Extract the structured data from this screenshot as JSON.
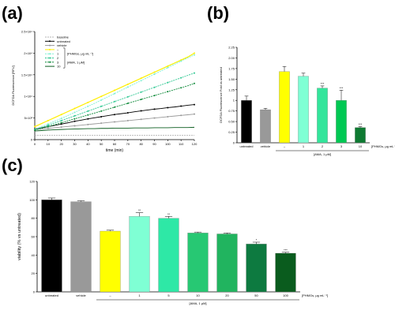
{
  "panels": {
    "a": "(a)",
    "b": "(b)",
    "c": "(c)"
  },
  "chart_data": [
    {
      "panel": "(a)",
      "type": "line",
      "xlabel": "time (min)",
      "ylabel": "DCFDA Fluorescence [RFU]",
      "xlim": [
        0,
        120
      ],
      "ylim": [
        0,
        25000
      ],
      "x": [
        0,
        5,
        10,
        15,
        20,
        25,
        30,
        35,
        40,
        45,
        50,
        55,
        60,
        65,
        70,
        75,
        80,
        85,
        90,
        95,
        100,
        105,
        110,
        115,
        120
      ],
      "x_ticks": [
        0,
        10,
        20,
        30,
        40,
        50,
        60,
        70,
        80,
        90,
        100,
        110,
        120
      ],
      "y_ticks": [
        0,
        5000,
        10000,
        15000,
        20000,
        25000
      ],
      "y_tick_labels": [
        "0",
        "5×10³",
        "1×10⁴",
        "1.5×10⁴",
        "2×10⁴",
        "2.5×10⁴"
      ],
      "legend_note": "[PHMGs, μg mL⁻¹]",
      "legend_note2": "[AMA, 1 μM]",
      "series": [
        {
          "name": "baseline",
          "color": "#b4b4b4",
          "dash": "2,1",
          "marker": "none",
          "values": [
            1000,
            1000,
            1000,
            1000,
            1000,
            1000,
            1000,
            1000,
            1000,
            1000,
            1000,
            1000,
            1000,
            1000,
            1000,
            1000,
            1000,
            1000,
            1000,
            1000,
            1000,
            1000,
            1000,
            1000,
            1000
          ]
        },
        {
          "name": "untreated",
          "color": "#000000",
          "dash": "",
          "marker": "circle",
          "values": [
            2500,
            2750,
            3000,
            3300,
            3600,
            3900,
            4250,
            4500,
            4800,
            5050,
            5300,
            5550,
            5800,
            6000,
            6200,
            6450,
            6650,
            6850,
            7050,
            7200,
            7400,
            7550,
            7750,
            7950,
            8100
          ]
        },
        {
          "name": "vehicle",
          "color": "#999999",
          "dash": "",
          "marker": "circle",
          "values": [
            2300,
            2450,
            2600,
            2750,
            2900,
            3050,
            3200,
            3350,
            3500,
            3650,
            3800,
            3950,
            4100,
            4250,
            4400,
            4550,
            4700,
            4850,
            5000,
            5150,
            5300,
            5450,
            5600,
            5750,
            5900
          ]
        },
        {
          "name": "–",
          "color": "#ffee00",
          "dash": "",
          "marker": "circle",
          "values": [
            3000,
            3700,
            4400,
            5100,
            5800,
            6500,
            7200,
            7900,
            8600,
            9300,
            10000,
            10700,
            11400,
            12100,
            12800,
            13500,
            14200,
            14900,
            15600,
            16300,
            17000,
            17700,
            18400,
            19100,
            20000
          ]
        },
        {
          "name": "1",
          "color": "#7ff0d2",
          "dash": "2,1",
          "marker": "circle",
          "values": [
            2400,
            3000,
            3600,
            4250,
            4900,
            5600,
            6300,
            7000,
            7700,
            8400,
            9150,
            9900,
            10650,
            11400,
            12150,
            12900,
            13650,
            14400,
            15150,
            15900,
            16650,
            17400,
            18150,
            18900,
            19600
          ]
        },
        {
          "name": "2",
          "color": "#2fc892",
          "dash": "2,1",
          "marker": "circle",
          "values": [
            2300,
            2800,
            3300,
            3850,
            4400,
            4950,
            5500,
            6050,
            6600,
            7150,
            7700,
            8250,
            8800,
            9350,
            9900,
            10450,
            11000,
            11550,
            12100,
            12650,
            13200,
            13750,
            14300,
            14850,
            15400
          ]
        },
        {
          "name": "3",
          "color": "#0f8a3a",
          "dash": "2,1",
          "marker": "circle",
          "values": [
            2200,
            2600,
            3000,
            3450,
            3900,
            4350,
            4800,
            5250,
            5700,
            6150,
            6600,
            7050,
            7500,
            7950,
            8400,
            8850,
            9300,
            9750,
            10200,
            10650,
            11100,
            11550,
            12000,
            12450,
            13000
          ]
        },
        {
          "name": "10",
          "color": "#0a5c1e",
          "dash": "",
          "marker": "none",
          "values": [
            2000,
            2100,
            2200,
            2300,
            2350,
            2400,
            2450,
            2500,
            2550,
            2550,
            2600,
            2600,
            2650,
            2650,
            2650,
            2700,
            2700,
            2700,
            2750,
            2750,
            2750,
            2800,
            2800,
            2800,
            2850
          ]
        }
      ]
    },
    {
      "panel": "(b)",
      "type": "bar",
      "ylabel": "DCFDA Fluorescence Fold vs untreated",
      "ylim": [
        0,
        2.25
      ],
      "y_ticks": [
        0,
        0.25,
        0.5,
        0.75,
        1,
        1.25,
        1.5,
        1.75,
        2,
        2.25
      ],
      "y_tick_labels": [
        "0",
        "0.25",
        "0.50",
        "0.75",
        "1",
        "1.25",
        "1.50",
        "1.75",
        "2.00",
        "2.25"
      ],
      "categories": [
        "untreated",
        "vehicle",
        "–",
        "1",
        "2",
        "3",
        "10"
      ],
      "values": [
        1.0,
        0.78,
        1.68,
        1.57,
        1.29,
        1.0,
        0.36
      ],
      "errors": [
        0.1,
        0.03,
        0.12,
        0.07,
        0.05,
        0.24,
        0.02
      ],
      "colors": [
        "#000000",
        "#999999",
        "#ffff00",
        "#7fffd4",
        "#33e59b",
        "#00c853",
        "#0e7a32"
      ],
      "annotations": [
        "",
        "",
        "",
        "",
        "***",
        "***",
        "***"
      ],
      "group_label": "[AMA, 1 μM]",
      "treatment_label": "[PHMGs, μg mL⁻¹]"
    },
    {
      "panel": "(c)",
      "type": "bar",
      "ylabel": "viability (% vs untreated)",
      "ylim": [
        0,
        120
      ],
      "y_ticks": [
        0,
        20,
        40,
        60,
        80,
        100,
        120
      ],
      "y_tick_labels": [
        "0",
        "20",
        "40",
        "60",
        "80",
        "100",
        "120"
      ],
      "categories": [
        "untreated",
        "vehicle",
        "–",
        "1",
        "5",
        "10",
        "20",
        "50",
        "100"
      ],
      "values": [
        100,
        98,
        66,
        82,
        80,
        64,
        63,
        52,
        42
      ],
      "errors": [
        2,
        1,
        1,
        4,
        2,
        1,
        1,
        2,
        1
      ],
      "colors": [
        "#000000",
        "#999999",
        "#ffff00",
        "#7fffd4",
        "#2ee8a6",
        "#27c873",
        "#21b45f",
        "#0d7a40",
        "#0a5c1e"
      ],
      "annotations": [
        "",
        "",
        "",
        "**",
        "**",
        "",
        "",
        "*",
        "***"
      ],
      "group_label": "[AMA, 1 μM]",
      "treatment_label": "[PHMGs, μg mL⁻¹]"
    }
  ]
}
